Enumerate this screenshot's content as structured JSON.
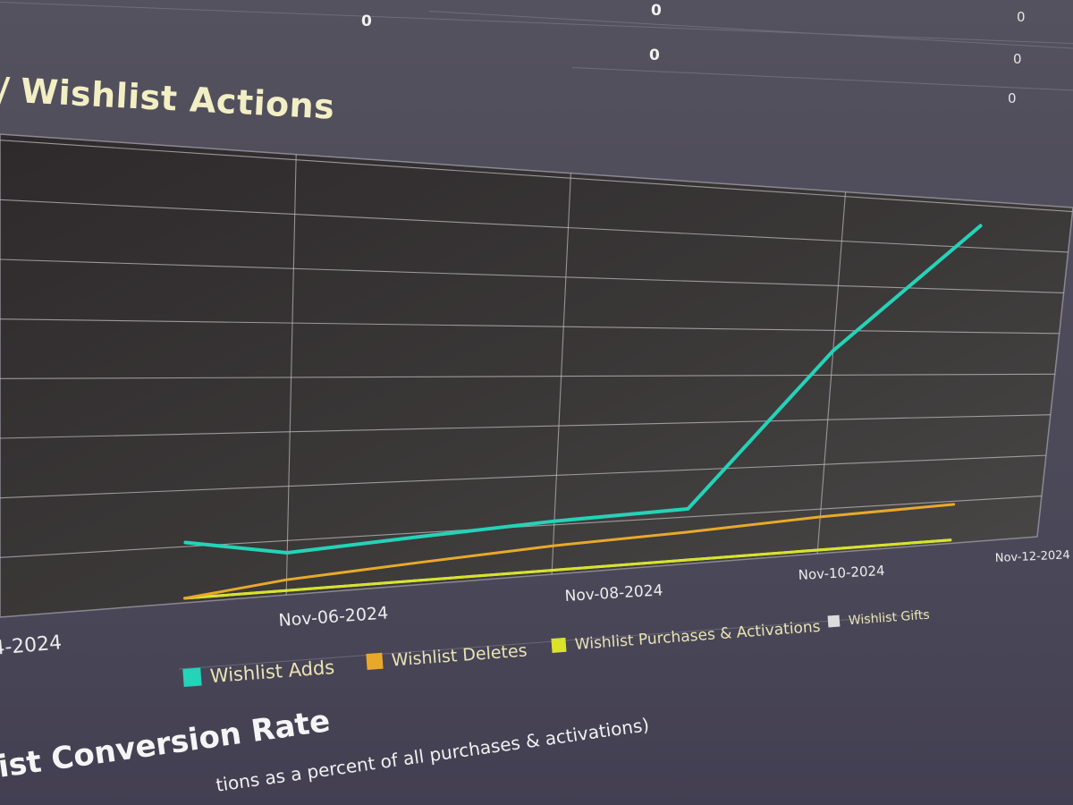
{
  "summary_table": {
    "rows": [
      [
        "0",
        "0",
        "0"
      ],
      [
        "",
        "0",
        "0"
      ],
      [
        "",
        "",
        "0"
      ]
    ]
  },
  "section_title": {
    "prefix": "/",
    "text": "Wishlist Actions"
  },
  "chart_data": {
    "type": "line",
    "title": "Wishlist Actions",
    "x_tick_labels": [
      "4-2024",
      "Nov-06-2024",
      "Nov-08-2024",
      "Nov-10-2024",
      "Nov-12-2024"
    ],
    "x": [
      "Nov-05-2024",
      "Nov-06-2024",
      "Nov-07-2024",
      "Nov-08-2024",
      "Nov-09-2024",
      "Nov-10-2024",
      "Nov-11-2024"
    ],
    "series": [
      {
        "name": "Wishlist Adds",
        "color": "#24d3b8",
        "values": [
          1.0,
          0.7,
          0.85,
          1.0,
          1.1,
          4.5,
          7.5
        ]
      },
      {
        "name": "Wishlist Deletes",
        "color": "#e8a92a",
        "values": [
          0,
          0.2,
          0.35,
          0.5,
          0.6,
          0.75,
          0.85
        ]
      },
      {
        "name": "Wishlist Purchases & Activations",
        "color": "#d8e32a",
        "values": [
          0,
          0,
          0,
          0,
          0,
          0,
          0
        ]
      },
      {
        "name": "Wishlist Gifts",
        "color": "#dcdcdc",
        "values": [
          0,
          0,
          0,
          0,
          0,
          0,
          0
        ]
      }
    ],
    "y_gridlines": 8,
    "legend_position": "bottom",
    "grid": true,
    "plot_background": "#3f3d3f"
  },
  "conversion_section": {
    "title": "chlist Conversion Rate",
    "subtitle": "tions as a percent of all purchases & activations)"
  }
}
